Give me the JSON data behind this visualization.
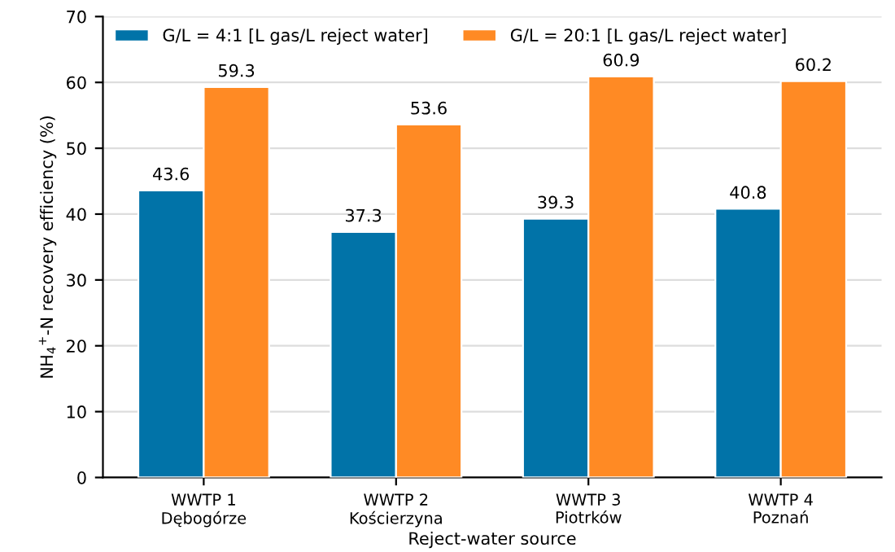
{
  "chart_data": {
    "type": "bar",
    "xlabel": "Reject-water source",
    "ylabel": "NH$_{4}$$^{+}$-N recovery efficiency (%)",
    "categories": [
      "WWTP 1\nDębogórze",
      "WWTP 2\nKościerzyna",
      "WWTP 3\nPiotrków",
      "WWTP 4\nPoznań"
    ],
    "series": [
      {
        "name": "G/L = 4:1 [L gas/L reject water]",
        "color": "#0173a8",
        "values": [
          43.6,
          37.3,
          39.3,
          40.8
        ]
      },
      {
        "name": "G/L = 20:1 [L gas/L reject water]",
        "color": "#ff8a24",
        "values": [
          59.3,
          53.6,
          60.9,
          60.2
        ]
      }
    ],
    "ylim": [
      0,
      70
    ],
    "yticks": [
      0,
      10,
      20,
      30,
      40,
      50,
      60,
      70
    ],
    "grid": "y",
    "legend": "top left",
    "data_labels": true
  }
}
